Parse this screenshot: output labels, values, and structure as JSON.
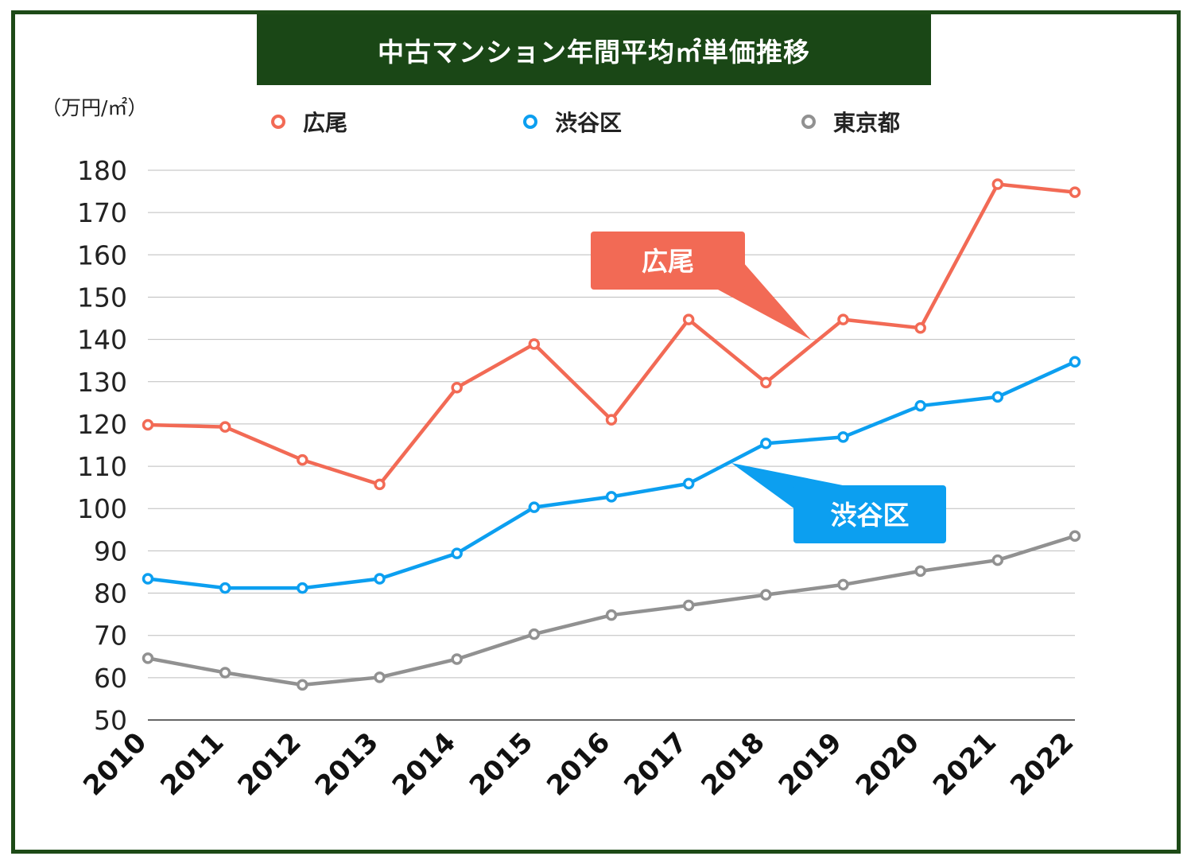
{
  "title": "中古マンション年間平均㎡単価推移",
  "unit_label": "（万円/㎡）",
  "colors": {
    "frame": "#1d4a17",
    "title_bg": "#1a4716",
    "grid": "#bdbdbd"
  },
  "chart_data": {
    "type": "line",
    "title": "中古マンション年間平均㎡単価推移",
    "ylabel": "（万円/㎡）",
    "xlabel": "",
    "categories": [
      "2010",
      "2011",
      "2012",
      "2013",
      "2014",
      "2015",
      "2016",
      "2017",
      "2018",
      "2019",
      "2020",
      "2021",
      "2022"
    ],
    "ylim": [
      50,
      180
    ],
    "yticks": [
      50,
      60,
      70,
      80,
      90,
      100,
      110,
      120,
      130,
      140,
      150,
      160,
      170,
      180
    ],
    "grid": true,
    "legend_position": "top",
    "series": [
      {
        "name": "広尾",
        "color": "#f26a55",
        "values": [
          119.8,
          119.3,
          111.5,
          105.7,
          128.6,
          138.9,
          121.0,
          144.7,
          129.8,
          144.7,
          142.7,
          176.7,
          174.8
        ]
      },
      {
        "name": "渋谷区",
        "color": "#0c9ff0",
        "values": [
          83.4,
          81.2,
          81.2,
          83.4,
          89.4,
          100.3,
          102.8,
          105.9,
          115.4,
          116.9,
          124.3,
          126.4,
          134.7
        ]
      },
      {
        "name": "東京都",
        "color": "#919191",
        "values": [
          64.6,
          61.2,
          58.3,
          60.1,
          64.4,
          70.3,
          74.8,
          77.1,
          79.6,
          82.0,
          85.2,
          87.8,
          93.5
        ]
      }
    ],
    "annotations": [
      {
        "text": "広尾",
        "series": "広尾",
        "color": "#f26a55"
      },
      {
        "text": "渋谷区",
        "series": "渋谷区",
        "color": "#0c9ff0"
      }
    ]
  }
}
